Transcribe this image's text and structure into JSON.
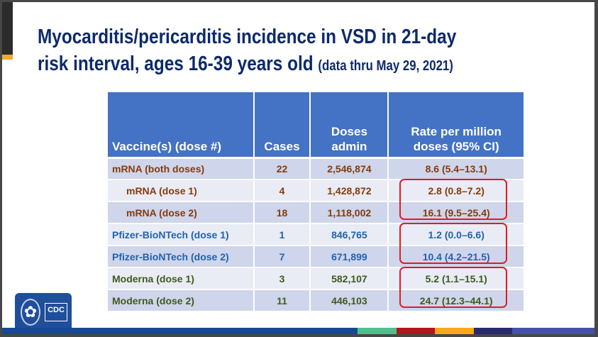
{
  "title": {
    "line1": "Myocarditis/pericarditis incidence in VSD in 21-day",
    "line2": "risk interval, ages 16-39 years old",
    "subtitle": "(data thru May 29, 2021)"
  },
  "table": {
    "headers": [
      "Vaccine(s) (dose #)",
      "Cases",
      "Doses admin",
      "Rate per million doses (95% CI)"
    ],
    "rows": [
      {
        "vaccine": "mRNA (both doses)",
        "cases": "22",
        "doses": "2,546,874",
        "rate": "8.6 (5.4–13.1)"
      },
      {
        "vaccine": "mRNA (dose 1)",
        "cases": "4",
        "doses": "1,428,872",
        "rate": "2.8 (0.8–7.2)"
      },
      {
        "vaccine": "mRNA (dose 2)",
        "cases": "18",
        "doses": "1,118,002",
        "rate": "16.1 (9.5–25.4)"
      },
      {
        "vaccine": "Pfizer-BioNTech (dose 1)",
        "cases": "1",
        "doses": "846,765",
        "rate": "1.2 (0.0–6.6)"
      },
      {
        "vaccine": "Pfizer-BioNTech (dose 2)",
        "cases": "7",
        "doses": "671,899",
        "rate": "10.4 (4.2–21.5)"
      },
      {
        "vaccine": "Moderna (dose 1)",
        "cases": "3",
        "doses": "582,107",
        "rate": "5.2 (1.1–15.1)"
      },
      {
        "vaccine": "Moderna (dose 2)",
        "cases": "11",
        "doses": "446,103",
        "rate": "24.7 (12.3–44.1)"
      }
    ]
  },
  "logo": {
    "text": "CDC"
  },
  "colors": {
    "header": "#4472c4",
    "mrna": "#843c0c",
    "pfizer": "#1f63b0",
    "moderna": "#3f5a1f",
    "highlight": "#e31b23",
    "bottom_bar": [
      "#17498f",
      "#52bf8a",
      "#b2171c",
      "#f7a81b",
      "#2a2a6e",
      "#4453a3"
    ]
  }
}
